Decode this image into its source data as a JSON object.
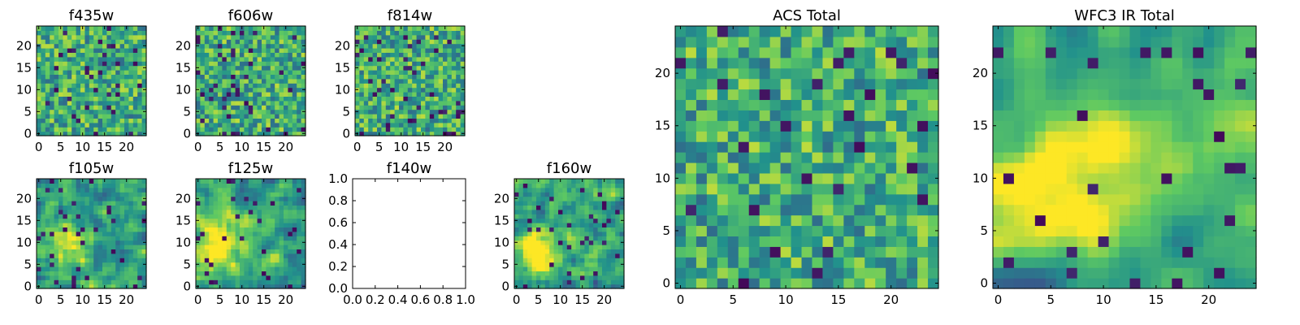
{
  "figure_title": "",
  "colormap": {
    "name": "viridis",
    "stops": [
      "#440154",
      "#3b528b",
      "#21918c",
      "#5ec962",
      "#fde725"
    ]
  },
  "chart_data": [
    {
      "id": "f435w",
      "type": "heatmap",
      "title": "f435w",
      "grid_size": 25,
      "xlim": [
        0,
        24
      ],
      "ylim": [
        0,
        24
      ],
      "xticks": [
        "0",
        "5",
        "10",
        "15",
        "20"
      ],
      "yticks": [
        "0",
        "5",
        "10",
        "15",
        "20"
      ],
      "pattern": "noise",
      "seed": 11,
      "smooth": 0,
      "low_frac": 0.05,
      "note": "pixel intensities, noisy"
    },
    {
      "id": "f606w",
      "type": "heatmap",
      "title": "f606w",
      "grid_size": 25,
      "xlim": [
        0,
        24
      ],
      "ylim": [
        0,
        24
      ],
      "xticks": [
        "0",
        "5",
        "10",
        "15",
        "20"
      ],
      "yticks": [
        "0",
        "5",
        "10",
        "15",
        "20"
      ],
      "pattern": "noise",
      "seed": 23,
      "smooth": 0,
      "low_frac": 0.06
    },
    {
      "id": "f814w",
      "type": "heatmap",
      "title": "f814w",
      "grid_size": 25,
      "xlim": [
        0,
        24
      ],
      "ylim": [
        0,
        24
      ],
      "xticks": [
        "0",
        "5",
        "10",
        "15",
        "20"
      ],
      "yticks": [
        "0",
        "5",
        "10",
        "15",
        "20"
      ],
      "pattern": "noise",
      "seed": 37,
      "smooth": 0,
      "low_frac": 0.05
    },
    {
      "id": "f105w",
      "type": "heatmap",
      "title": "f105w",
      "grid_size": 25,
      "xlim": [
        0,
        24
      ],
      "ylim": [
        0,
        24
      ],
      "xticks": [
        "0",
        "5",
        "10",
        "15",
        "20"
      ],
      "yticks": [
        "0",
        "5",
        "10",
        "15",
        "20"
      ],
      "pattern": "noise",
      "seed": 41,
      "smooth": 1,
      "low_frac": 0.05,
      "blob": {
        "x": 6,
        "y": 9,
        "sigma": 4.5,
        "amp": 0.35
      }
    },
    {
      "id": "f125w",
      "type": "heatmap",
      "title": "f125w",
      "grid_size": 25,
      "xlim": [
        0,
        24
      ],
      "ylim": [
        0,
        24
      ],
      "xticks": [
        "0",
        "5",
        "10",
        "15",
        "20"
      ],
      "yticks": [
        "0",
        "5",
        "10",
        "15",
        "20"
      ],
      "pattern": "noise",
      "seed": 53,
      "smooth": 1,
      "low_frac": 0.05,
      "blob": {
        "x": 5,
        "y": 10,
        "sigma": 4.5,
        "amp": 0.35
      }
    },
    {
      "id": "f140w",
      "type": "empty",
      "title": "f140w",
      "xlim": [
        0,
        1
      ],
      "ylim": [
        0,
        1
      ],
      "xticks": [
        "0.0",
        "0.2",
        "0.4",
        "0.6",
        "0.8",
        "1.0"
      ],
      "yticks": [
        "0.0",
        "0.2",
        "0.4",
        "0.6",
        "0.8",
        "1.0"
      ]
    },
    {
      "id": "f160w",
      "type": "heatmap",
      "title": "f160w",
      "grid_size": 25,
      "xlim": [
        0,
        24
      ],
      "ylim": [
        0,
        24
      ],
      "xticks": [
        "0",
        "5",
        "10",
        "15",
        "20"
      ],
      "yticks": [
        "0",
        "5",
        "10",
        "15",
        "20"
      ],
      "pattern": "noise",
      "seed": 67,
      "smooth": 1,
      "low_frac": 0.05,
      "blob": {
        "x": 4,
        "y": 9,
        "sigma": 4,
        "amp": 0.4
      }
    },
    {
      "id": "acs_total",
      "type": "heatmap",
      "title": "ACS Total",
      "grid_size": 25,
      "xlim": [
        0,
        24
      ],
      "ylim": [
        0,
        24
      ],
      "xticks": [
        "0",
        "5",
        "10",
        "15",
        "20"
      ],
      "yticks": [
        "0",
        "5",
        "10",
        "15",
        "20"
      ],
      "pattern": "noise",
      "seed": 79,
      "smooth": 0,
      "low_frac": 0.03
    },
    {
      "id": "wfc3_ir_total",
      "type": "heatmap",
      "title": "WFC3 IR Total",
      "grid_size": 25,
      "xlim": [
        0,
        24
      ],
      "ylim": [
        0,
        24
      ],
      "xticks": [
        "0",
        "5",
        "10",
        "15",
        "20"
      ],
      "yticks": [
        "0",
        "5",
        "10",
        "15",
        "20"
      ],
      "pattern": "noise",
      "seed": 97,
      "smooth": 2,
      "low_frac": 0.03,
      "blob": {
        "x": 4,
        "y": 9,
        "sigma": 4,
        "amp": 0.45
      },
      "blob2": {
        "x": 12,
        "y": 13,
        "sigma": 3,
        "amp": 0.25
      }
    }
  ]
}
